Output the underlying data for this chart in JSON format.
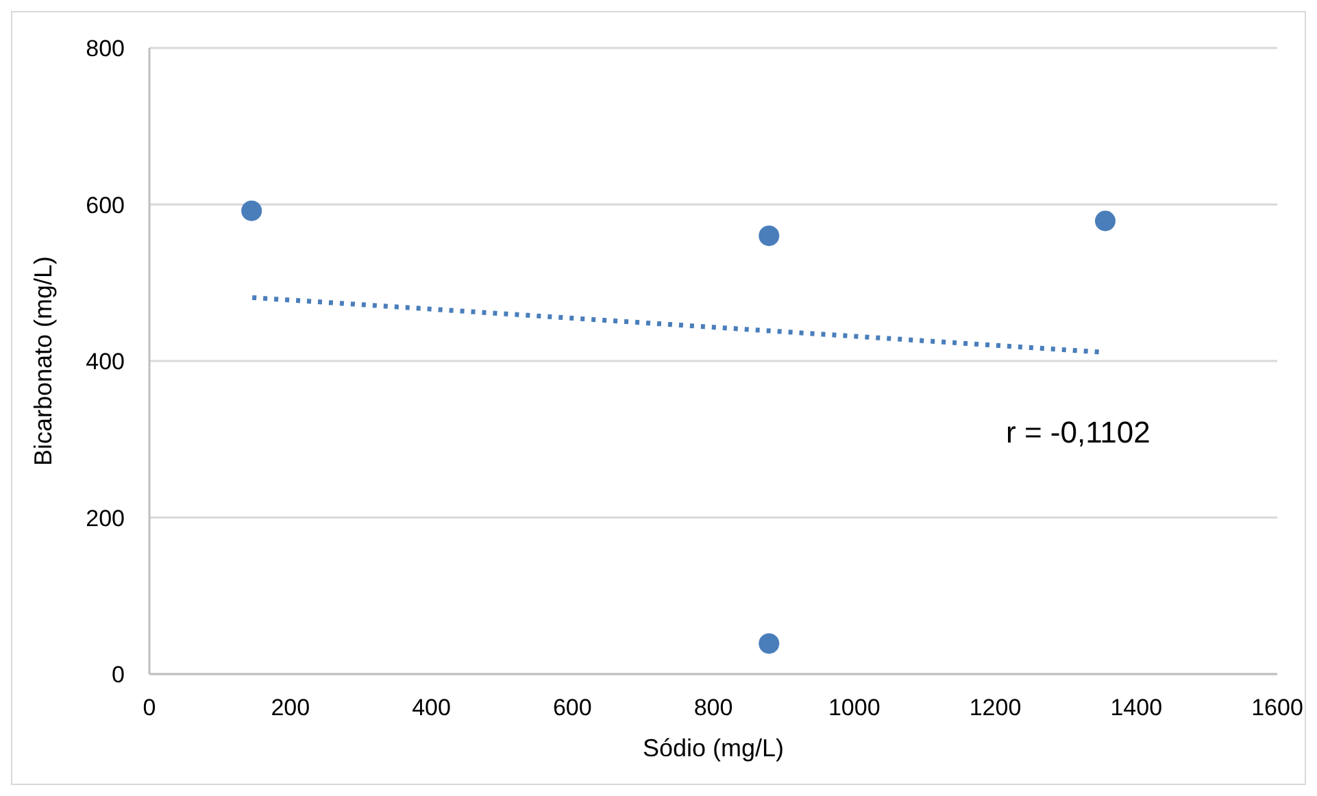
{
  "chart_data": {
    "type": "scatter",
    "xlabel": "Sódio (mg/L)",
    "ylabel": "Bicarbonato (mg/L)",
    "series": [
      {
        "color": "#4a7ebb",
        "x": [
          145,
          879,
          1356,
          879
        ],
        "values": [
          592,
          560,
          579,
          39
        ],
        "marker": "circle"
      },
      {
        "type": "line",
        "color": "#4a7ebb",
        "x": [
          146,
          1356
        ],
        "values": [
          481,
          411
        ],
        "line_style": "dotted",
        "marker": "none"
      }
    ],
    "xlim": [
      0,
      1600
    ],
    "xticks": [
      0,
      200,
      400,
      600,
      800,
      1000,
      1200,
      1400,
      1600
    ],
    "ylim": [
      0,
      800
    ],
    "yticks": [
      0,
      200,
      400,
      600,
      800
    ],
    "grid": "y",
    "annotations": [
      "r = -0,1102"
    ]
  }
}
